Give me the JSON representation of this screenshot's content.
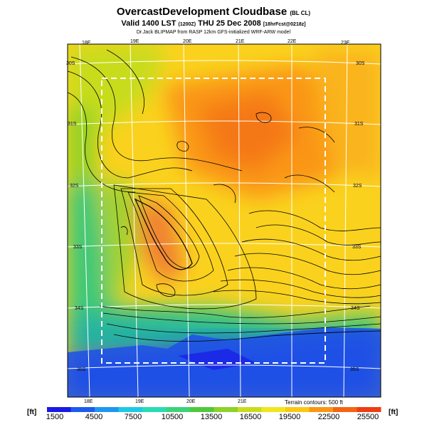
{
  "header": {
    "title": "OvercastDevelopment Cloudbase",
    "title_tag": "(BL CL)",
    "valid_prefix": "Valid 1400 LST",
    "valid_code": "(1200Z)",
    "valid_date": "THU 25 Dec 2008",
    "valid_suffix": "[18hrFcst@0218z]",
    "credit": "Dr.Jack BLIPMAP from RASP 12km GFS-initialized WRF-ARW model"
  },
  "map": {
    "longitude_labels_top": [
      "18E",
      "19E",
      "20E",
      "21E",
      "22E",
      "23E"
    ],
    "longitude_labels_bottom": [
      "18E",
      "19E",
      "20E",
      "21E"
    ],
    "latitude_labels_left": [
      "30S",
      "31S",
      "32S",
      "33S",
      "34S",
      "35S"
    ],
    "latitude_labels_right": [
      "30S",
      "31S",
      "32S",
      "33S",
      "34S",
      "35S"
    ],
    "contour_note": "Terrain contours: 500 ft"
  },
  "colorbar": {
    "unit_left": "[ft]",
    "unit_right": "[ft]",
    "ticks": [
      "1500",
      "4500",
      "7500",
      "10500",
      "13500",
      "16500",
      "19500",
      "22500",
      "25500"
    ],
    "colors": [
      "#1a1ae6",
      "#1e5af0",
      "#1e96f0",
      "#1ec8e6",
      "#28dcb4",
      "#3cd278",
      "#50c83c",
      "#8cd228",
      "#c8dc1e",
      "#f0e61e",
      "#fac814",
      "#fa9614",
      "#f56414",
      "#f03c14"
    ]
  }
}
